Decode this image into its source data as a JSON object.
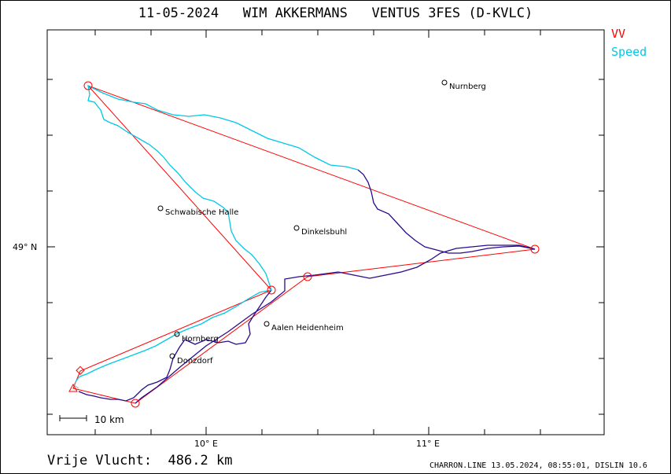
{
  "title": "11-05-2024   WIM AKKERMANS   VENTUS 3FES (D-KVLC)",
  "legend": {
    "vv": {
      "label": "VV",
      "color": "#ff0000"
    },
    "speed": {
      "label": "Speed",
      "color": "#00c8e6"
    }
  },
  "axes": {
    "x_ticks": [
      {
        "label": "10° E"
      },
      {
        "label": "11° E"
      }
    ],
    "y_ticks": [
      {
        "label": "49° N"
      }
    ]
  },
  "places": [
    {
      "name": "Nurnberg"
    },
    {
      "name": "Schwabische Halle"
    },
    {
      "name": "Dinkelsbuhl"
    },
    {
      "name": "Aalen Heidenheim"
    },
    {
      "name": "Hornberg"
    },
    {
      "name": "Donzdorf"
    }
  ],
  "scale_bar": {
    "label": "10 km"
  },
  "free_flight": {
    "label": "Vrije Vlucht:",
    "value": "486.2 km"
  },
  "footer": "CHARRON.LINE 13.05.2024, 08:55:01, DISLIN 10.6",
  "colors": {
    "task": "#ff0000",
    "track_fast": "#00c8e6",
    "track_slow": "#2a0a8c"
  }
}
